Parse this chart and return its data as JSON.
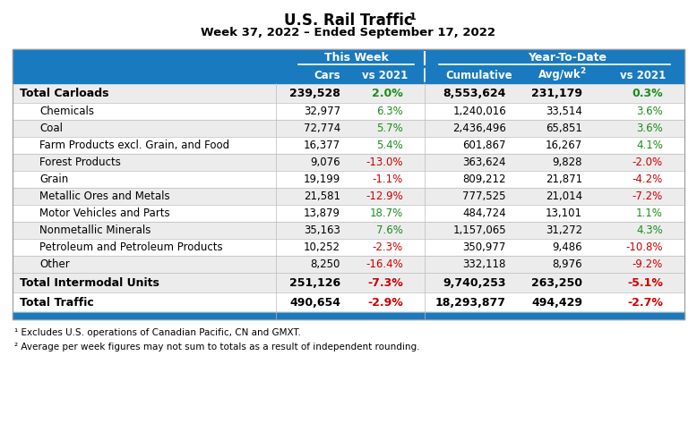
{
  "title": "U.S. Rail Traffic",
  "subtitle": "Week 37, 2022 – Ended September 17, 2022",
  "header_bg": "#1a7abf",
  "rows": [
    {
      "label": "Total Carloads",
      "bold": true,
      "indent": false,
      "bg": "#ececec",
      "cars": "239,528",
      "vs2021_week": "2.0%",
      "vs2021_week_color": "#1a8c1a",
      "cumulative": "8,553,624",
      "avgwk": "231,179",
      "vs2021_ytd": "0.3%",
      "vs2021_ytd_color": "#1a8c1a"
    },
    {
      "label": "Chemicals",
      "bold": false,
      "indent": true,
      "bg": "#ffffff",
      "cars": "32,977",
      "vs2021_week": "6.3%",
      "vs2021_week_color": "#1a8c1a",
      "cumulative": "1,240,016",
      "avgwk": "33,514",
      "vs2021_ytd": "3.6%",
      "vs2021_ytd_color": "#1a8c1a"
    },
    {
      "label": "Coal",
      "bold": false,
      "indent": true,
      "bg": "#ececec",
      "cars": "72,774",
      "vs2021_week": "5.7%",
      "vs2021_week_color": "#1a8c1a",
      "cumulative": "2,436,496",
      "avgwk": "65,851",
      "vs2021_ytd": "3.6%",
      "vs2021_ytd_color": "#1a8c1a"
    },
    {
      "label": "Farm Products excl. Grain, and Food",
      "bold": false,
      "indent": true,
      "bg": "#ffffff",
      "cars": "16,377",
      "vs2021_week": "5.4%",
      "vs2021_week_color": "#1a8c1a",
      "cumulative": "601,867",
      "avgwk": "16,267",
      "vs2021_ytd": "4.1%",
      "vs2021_ytd_color": "#1a8c1a"
    },
    {
      "label": "Forest Products",
      "bold": false,
      "indent": true,
      "bg": "#ececec",
      "cars": "9,076",
      "vs2021_week": "-13.0%",
      "vs2021_week_color": "#cc0000",
      "cumulative": "363,624",
      "avgwk": "9,828",
      "vs2021_ytd": "-2.0%",
      "vs2021_ytd_color": "#cc0000"
    },
    {
      "label": "Grain",
      "bold": false,
      "indent": true,
      "bg": "#ffffff",
      "cars": "19,199",
      "vs2021_week": "-1.1%",
      "vs2021_week_color": "#cc0000",
      "cumulative": "809,212",
      "avgwk": "21,871",
      "vs2021_ytd": "-4.2%",
      "vs2021_ytd_color": "#cc0000"
    },
    {
      "label": "Metallic Ores and Metals",
      "bold": false,
      "indent": true,
      "bg": "#ececec",
      "cars": "21,581",
      "vs2021_week": "-12.9%",
      "vs2021_week_color": "#cc0000",
      "cumulative": "777,525",
      "avgwk": "21,014",
      "vs2021_ytd": "-7.2%",
      "vs2021_ytd_color": "#cc0000"
    },
    {
      "label": "Motor Vehicles and Parts",
      "bold": false,
      "indent": true,
      "bg": "#ffffff",
      "cars": "13,879",
      "vs2021_week": "18.7%",
      "vs2021_week_color": "#1a8c1a",
      "cumulative": "484,724",
      "avgwk": "13,101",
      "vs2021_ytd": "1.1%",
      "vs2021_ytd_color": "#1a8c1a"
    },
    {
      "label": "Nonmetallic Minerals",
      "bold": false,
      "indent": true,
      "bg": "#ececec",
      "cars": "35,163",
      "vs2021_week": "7.6%",
      "vs2021_week_color": "#1a8c1a",
      "cumulative": "1,157,065",
      "avgwk": "31,272",
      "vs2021_ytd": "4.3%",
      "vs2021_ytd_color": "#1a8c1a"
    },
    {
      "label": "Petroleum and Petroleum Products",
      "bold": false,
      "indent": true,
      "bg": "#ffffff",
      "cars": "10,252",
      "vs2021_week": "-2.3%",
      "vs2021_week_color": "#cc0000",
      "cumulative": "350,977",
      "avgwk": "9,486",
      "vs2021_ytd": "-10.8%",
      "vs2021_ytd_color": "#cc0000"
    },
    {
      "label": "Other",
      "bold": false,
      "indent": true,
      "bg": "#ececec",
      "cars": "8,250",
      "vs2021_week": "-16.4%",
      "vs2021_week_color": "#cc0000",
      "cumulative": "332,118",
      "avgwk": "8,976",
      "vs2021_ytd": "-9.2%",
      "vs2021_ytd_color": "#cc0000"
    },
    {
      "label": "Total Intermodal Units",
      "bold": true,
      "indent": false,
      "bg": "#ececec",
      "cars": "251,126",
      "vs2021_week": "-7.3%",
      "vs2021_week_color": "#cc0000",
      "cumulative": "9,740,253",
      "avgwk": "263,250",
      "vs2021_ytd": "-5.1%",
      "vs2021_ytd_color": "#cc0000"
    },
    {
      "label": "Total Traffic",
      "bold": true,
      "indent": false,
      "bg": "#ffffff",
      "cars": "490,654",
      "vs2021_week": "-2.9%",
      "vs2021_week_color": "#cc0000",
      "cumulative": "18,293,877",
      "avgwk": "494,429",
      "vs2021_ytd": "-2.7%",
      "vs2021_ytd_color": "#cc0000"
    }
  ],
  "footnote1": "¹ Excludes U.S. operations of Canadian Pacific, CN and GMXT.",
  "footnote2": "² Average per week figures may not sum to totals as a result of independent rounding.",
  "bottom_bar_color": "#1a7abf"
}
